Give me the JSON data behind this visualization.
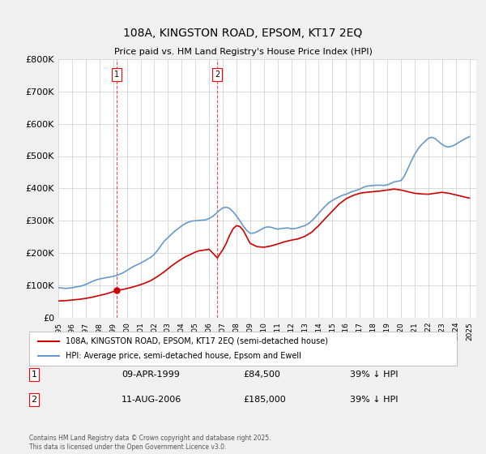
{
  "title": "108A, KINGSTON ROAD, EPSOM, KT17 2EQ",
  "subtitle": "Price paid vs. HM Land Registry's House Price Index (HPI)",
  "xlabel": "",
  "ylabel": "",
  "ylim": [
    0,
    800000
  ],
  "yticks": [
    0,
    100000,
    200000,
    300000,
    400000,
    500000,
    600000,
    700000,
    800000
  ],
  "ytick_labels": [
    "£0",
    "£100K",
    "£200K",
    "£300K",
    "£400K",
    "£500K",
    "£600K",
    "£700K",
    "£800K"
  ],
  "xlim_start": 1995.0,
  "xlim_end": 2025.5,
  "background_color": "#f0f0f0",
  "plot_bg_color": "#ffffff",
  "grid_color": "#cccccc",
  "line_color_hpi": "#6699cc",
  "line_color_price": "#cc0000",
  "marker1_x": 1999.27,
  "marker2_x": 2006.61,
  "marker1_label": "1",
  "marker2_label": "2",
  "marker1_price": 84500,
  "marker2_price": 185000,
  "transaction1_date": "09-APR-1999",
  "transaction1_price": "£84,500",
  "transaction1_note": "39% ↓ HPI",
  "transaction2_date": "11-AUG-2006",
  "transaction2_price": "£185,000",
  "transaction2_note": "39% ↓ HPI",
  "legend_label_price": "108A, KINGSTON ROAD, EPSOM, KT17 2EQ (semi-detached house)",
  "legend_label_hpi": "HPI: Average price, semi-detached house, Epsom and Ewell",
  "copyright": "Contains HM Land Registry data © Crown copyright and database right 2025.\nThis data is licensed under the Open Government Licence v3.0.",
  "hpi_years": [
    1995.0,
    1995.25,
    1995.5,
    1995.75,
    1996.0,
    1996.25,
    1996.5,
    1996.75,
    1997.0,
    1997.25,
    1997.5,
    1997.75,
    1998.0,
    1998.25,
    1998.5,
    1998.75,
    1999.0,
    1999.25,
    1999.5,
    1999.75,
    2000.0,
    2000.25,
    2000.5,
    2000.75,
    2001.0,
    2001.25,
    2001.5,
    2001.75,
    2002.0,
    2002.25,
    2002.5,
    2002.75,
    2003.0,
    2003.25,
    2003.5,
    2003.75,
    2004.0,
    2004.25,
    2004.5,
    2004.75,
    2005.0,
    2005.25,
    2005.5,
    2005.75,
    2006.0,
    2006.25,
    2006.5,
    2006.75,
    2007.0,
    2007.25,
    2007.5,
    2007.75,
    2008.0,
    2008.25,
    2008.5,
    2008.75,
    2009.0,
    2009.25,
    2009.5,
    2009.75,
    2010.0,
    2010.25,
    2010.5,
    2010.75,
    2011.0,
    2011.25,
    2011.5,
    2011.75,
    2012.0,
    2012.25,
    2012.5,
    2012.75,
    2013.0,
    2013.25,
    2013.5,
    2013.75,
    2014.0,
    2014.25,
    2014.5,
    2014.75,
    2015.0,
    2015.25,
    2015.5,
    2015.75,
    2016.0,
    2016.25,
    2016.5,
    2016.75,
    2017.0,
    2017.25,
    2017.5,
    2017.75,
    2018.0,
    2018.25,
    2018.5,
    2018.75,
    2019.0,
    2019.25,
    2019.5,
    2019.75,
    2020.0,
    2020.25,
    2020.5,
    2020.75,
    2021.0,
    2021.25,
    2021.5,
    2021.75,
    2022.0,
    2022.25,
    2022.5,
    2022.75,
    2023.0,
    2023.25,
    2023.5,
    2023.75,
    2024.0,
    2024.25,
    2024.5,
    2024.75,
    2025.0
  ],
  "hpi_values": [
    93000,
    92000,
    91000,
    91500,
    93000,
    95000,
    97000,
    99000,
    103000,
    108000,
    113000,
    117000,
    120000,
    122000,
    124000,
    126000,
    128000,
    131000,
    135000,
    140000,
    146000,
    153000,
    159000,
    164000,
    169000,
    175000,
    181000,
    187000,
    196000,
    209000,
    224000,
    238000,
    248000,
    258000,
    268000,
    276000,
    284000,
    291000,
    296000,
    299000,
    300000,
    301000,
    302000,
    303000,
    307000,
    313000,
    322000,
    332000,
    340000,
    342000,
    338000,
    328000,
    315000,
    300000,
    283000,
    270000,
    261000,
    262000,
    266000,
    272000,
    278000,
    281000,
    280000,
    277000,
    274000,
    276000,
    277000,
    278000,
    275000,
    276000,
    278000,
    282000,
    285000,
    291000,
    300000,
    311000,
    323000,
    335000,
    346000,
    356000,
    363000,
    369000,
    374000,
    379000,
    382000,
    387000,
    391000,
    394000,
    398000,
    403000,
    407000,
    408000,
    409000,
    410000,
    410000,
    409000,
    411000,
    415000,
    420000,
    422000,
    424000,
    438000,
    460000,
    484000,
    505000,
    522000,
    535000,
    545000,
    555000,
    558000,
    554000,
    545000,
    536000,
    530000,
    528000,
    531000,
    536000,
    543000,
    549000,
    555000,
    560000
  ],
  "price_years": [
    1995.0,
    1995.5,
    1996.0,
    1996.5,
    1997.0,
    1997.5,
    1998.0,
    1998.5,
    1999.27,
    1999.75,
    2000.25,
    2000.75,
    2001.25,
    2001.75,
    2002.25,
    2002.75,
    2003.25,
    2003.75,
    2004.25,
    2004.75,
    2005.0,
    2005.25,
    2005.75,
    2006.0,
    2006.61,
    2006.75,
    2007.0,
    2007.25,
    2007.5,
    2007.75,
    2008.0,
    2008.25,
    2008.5,
    2008.75,
    2009.0,
    2009.5,
    2010.0,
    2010.5,
    2011.0,
    2011.5,
    2012.0,
    2012.5,
    2013.0,
    2013.5,
    2014.0,
    2014.5,
    2015.0,
    2015.5,
    2016.0,
    2016.5,
    2017.0,
    2017.5,
    2018.0,
    2018.5,
    2019.0,
    2019.5,
    2020.0,
    2020.5,
    2021.0,
    2021.5,
    2022.0,
    2022.5,
    2023.0,
    2023.5,
    2024.0,
    2024.5,
    2025.0
  ],
  "price_values": [
    52000,
    53000,
    55000,
    57000,
    60000,
    64000,
    69000,
    74000,
    84500,
    88000,
    93000,
    99000,
    106000,
    115000,
    128000,
    143000,
    160000,
    175000,
    188000,
    198000,
    203000,
    207000,
    210000,
    212000,
    185000,
    195000,
    210000,
    230000,
    255000,
    275000,
    285000,
    282000,
    270000,
    250000,
    230000,
    220000,
    218000,
    222000,
    228000,
    235000,
    240000,
    244000,
    252000,
    265000,
    285000,
    308000,
    330000,
    352000,
    368000,
    378000,
    385000,
    388000,
    390000,
    392000,
    395000,
    398000,
    395000,
    390000,
    385000,
    383000,
    382000,
    385000,
    388000,
    385000,
    380000,
    375000,
    370000
  ]
}
